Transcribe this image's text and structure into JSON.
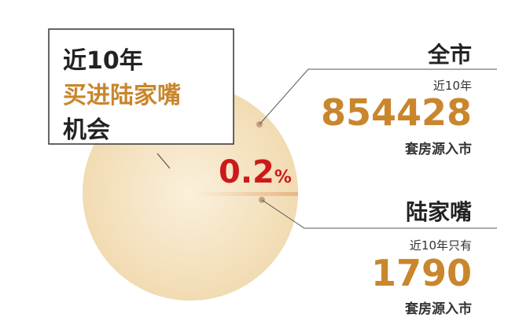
{
  "chart_data": {
    "type": "pie",
    "slices": [
      {
        "name": "全市",
        "value": 854428
      },
      {
        "name": "陆家嘴",
        "value": 1790
      }
    ],
    "annotation": "0.2%"
  },
  "title": {
    "line1": "近10年",
    "line2": "买进陆家嘴",
    "line3": "机会"
  },
  "percent": {
    "value": "0.2",
    "unit": "%"
  },
  "city": {
    "name": "全市",
    "prefix": "近10年",
    "count": "854428",
    "suffix": "套房源入市"
  },
  "ljz": {
    "name": "陆家嘴",
    "prefix": "近10年只有",
    "count": "1790",
    "suffix": "套房源入市"
  },
  "colors": {
    "dark": "#222222",
    "orange": "#c9862c",
    "red": "#cc1a1a",
    "pie": "#f3dfb8"
  }
}
